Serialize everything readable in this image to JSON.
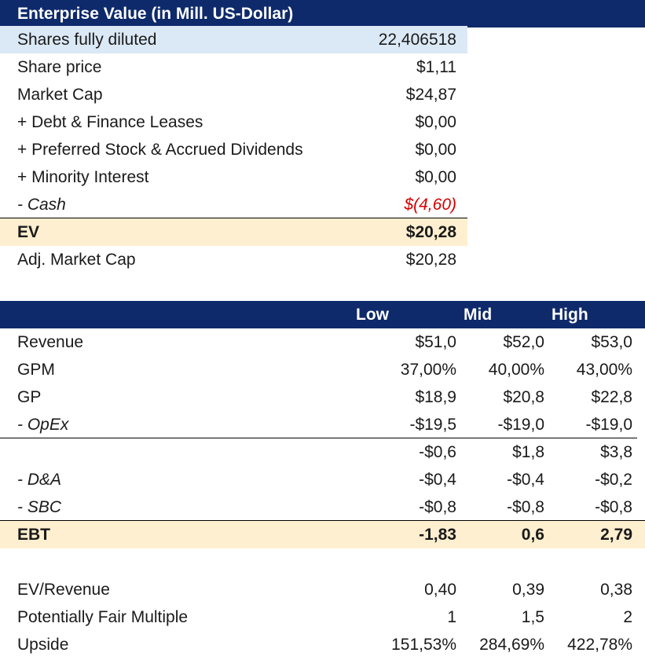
{
  "ev_section": {
    "title": "Enterprise Value (in Mill. US-Dollar)",
    "rows": [
      {
        "label": "Shares fully diluted",
        "value": "22,406518"
      },
      {
        "label": "Share price",
        "value": "$1,11"
      },
      {
        "label": "Market Cap",
        "value": "$24,87"
      },
      {
        "label": "+ Debt & Finance Leases",
        "value": "$0,00"
      },
      {
        "label": "+ Preferred Stock & Accrued Dividends",
        "value": "$0,00"
      },
      {
        "label": "+ Minority Interest",
        "value": "$0,00"
      },
      {
        "label": "- Cash",
        "value": "$(4,60)"
      },
      {
        "label": "EV",
        "value": "$20,28"
      },
      {
        "label": "Adj. Market Cap",
        "value": "$20,28"
      }
    ]
  },
  "scenario_section": {
    "columns": [
      "Low",
      "Mid",
      "High"
    ],
    "rows": [
      {
        "label": "Revenue",
        "values": [
          "$51,0",
          "$52,0",
          "$53,0"
        ]
      },
      {
        "label": "GPM",
        "values": [
          "37,00%",
          "40,00%",
          "43,00%"
        ]
      },
      {
        "label": "GP",
        "values": [
          "$18,9",
          "$20,8",
          "$22,8"
        ]
      },
      {
        "label": "- OpEx",
        "values": [
          "-$19,5",
          "-$19,0",
          "-$19,0"
        ]
      },
      {
        "label": "",
        "values": [
          "-$0,6",
          "$1,8",
          "$3,8"
        ]
      },
      {
        "label": "- D&A",
        "values": [
          "-$0,4",
          "-$0,4",
          "-$0,2"
        ]
      },
      {
        "label": "- SBC",
        "values": [
          "-$0,8",
          "-$0,8",
          "-$0,8"
        ]
      },
      {
        "label": "EBT",
        "values": [
          "-1,83",
          "0,6",
          "2,79"
        ]
      },
      {
        "label": "EV/Revenue",
        "values": [
          "0,40",
          "0,39",
          "0,38"
        ]
      },
      {
        "label": "Potentially Fair Multiple",
        "values": [
          "1",
          "1,5",
          "2"
        ]
      },
      {
        "label": "Upside",
        "values": [
          "151,53%",
          "284,69%",
          "422,78%"
        ]
      }
    ]
  },
  "colors": {
    "header_bg": "#0e2a6b",
    "highlight_blue": "#dbe8f5",
    "highlight_tan": "#fdefcf",
    "negative_red": "#d40000"
  }
}
